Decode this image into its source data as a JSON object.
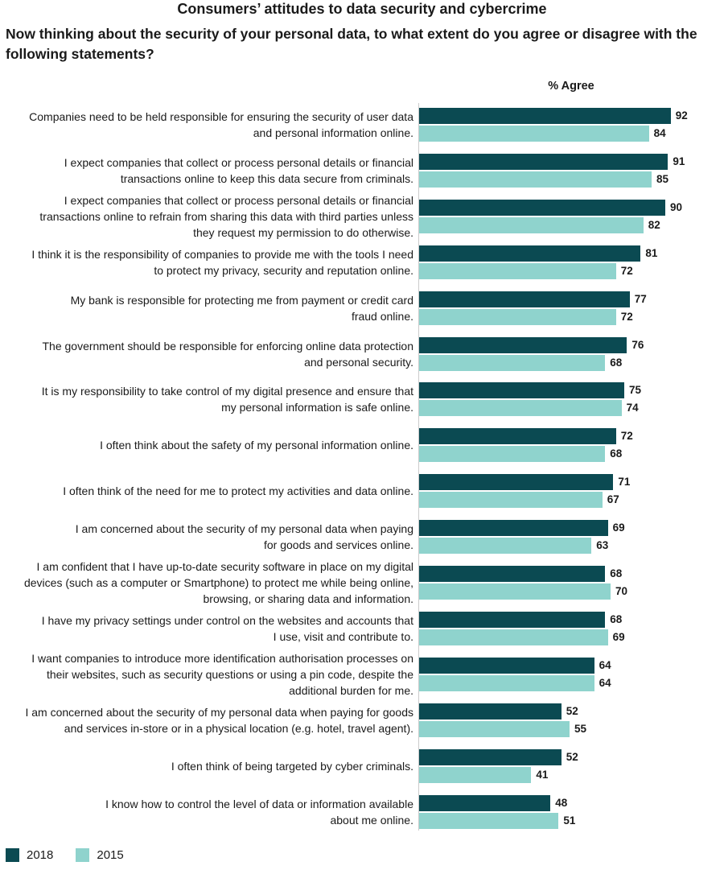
{
  "colors": {
    "2018": "#0b4a52",
    "2015": "#8fd3cd"
  },
  "chart_data": {
    "type": "bar",
    "orientation": "horizontal",
    "title": "Consumers’ attitudes to data security and cybercrime",
    "subtitle": "Now thinking about the security of your personal data, to what extent do you agree or disagree with the following statements?",
    "value_header": "% Agree",
    "xlim": [
      0,
      100
    ],
    "grid": false,
    "legend_position": "bottom-left",
    "categories": [
      [
        "Companies need to be held responsible for ensuring the security of user data",
        "and personal information online."
      ],
      [
        "I expect companies that collect or process personal details or financial",
        "transactions online to keep this data secure from criminals."
      ],
      [
        "I expect companies that collect or process personal details or financial",
        "transactions online to refrain from sharing this data with third parties unless",
        "they request my permission to do otherwise."
      ],
      [
        "I think it is the responsibility of companies to provide me with the tools I need",
        "to protect my privacy,  security and reputation online."
      ],
      [
        "My bank is responsible for protecting me from payment or credit card",
        "fraud online."
      ],
      [
        "The government should be responsible for enforcing online data protection",
        "and personal security."
      ],
      [
        "It is my responsibility to take control of my digital presence and ensure that",
        "my personal information is safe online."
      ],
      [
        "I often think about the safety of my personal information online."
      ],
      [
        "I often think of the need for me to protect my activities and data online."
      ],
      [
        "I am concerned about the security of my personal data when paying",
        "for goods and services online."
      ],
      [
        "I am confident that I have up-to-date security software in place on my digital",
        "devices (such as a computer or Smartphone) to protect me while being online,",
        "browsing, or sharing data and information."
      ],
      [
        "I have my privacy settings under control on the websites and accounts that",
        "I use, visit and contribute to."
      ],
      [
        "I want companies to introduce more identification authorisation processes on",
        "their websites, such as security questions or using a pin code, despite the",
        "additional burden for me."
      ],
      [
        "I am concerned about the security of my personal data when paying for goods",
        "and services in-store or in a physical location (e.g. hotel, travel agent)."
      ],
      [
        "I often think of being targeted by cyber criminals."
      ],
      [
        "I know how to control the level of data or information available",
        "about me online."
      ]
    ],
    "series": [
      {
        "name": "2018",
        "values": [
          92,
          91,
          90,
          81,
          77,
          76,
          75,
          72,
          71,
          69,
          68,
          68,
          64,
          52,
          52,
          48
        ]
      },
      {
        "name": "2015",
        "values": [
          84,
          85,
          82,
          72,
          72,
          68,
          74,
          68,
          67,
          63,
          70,
          69,
          64,
          55,
          41,
          51
        ]
      }
    ]
  }
}
